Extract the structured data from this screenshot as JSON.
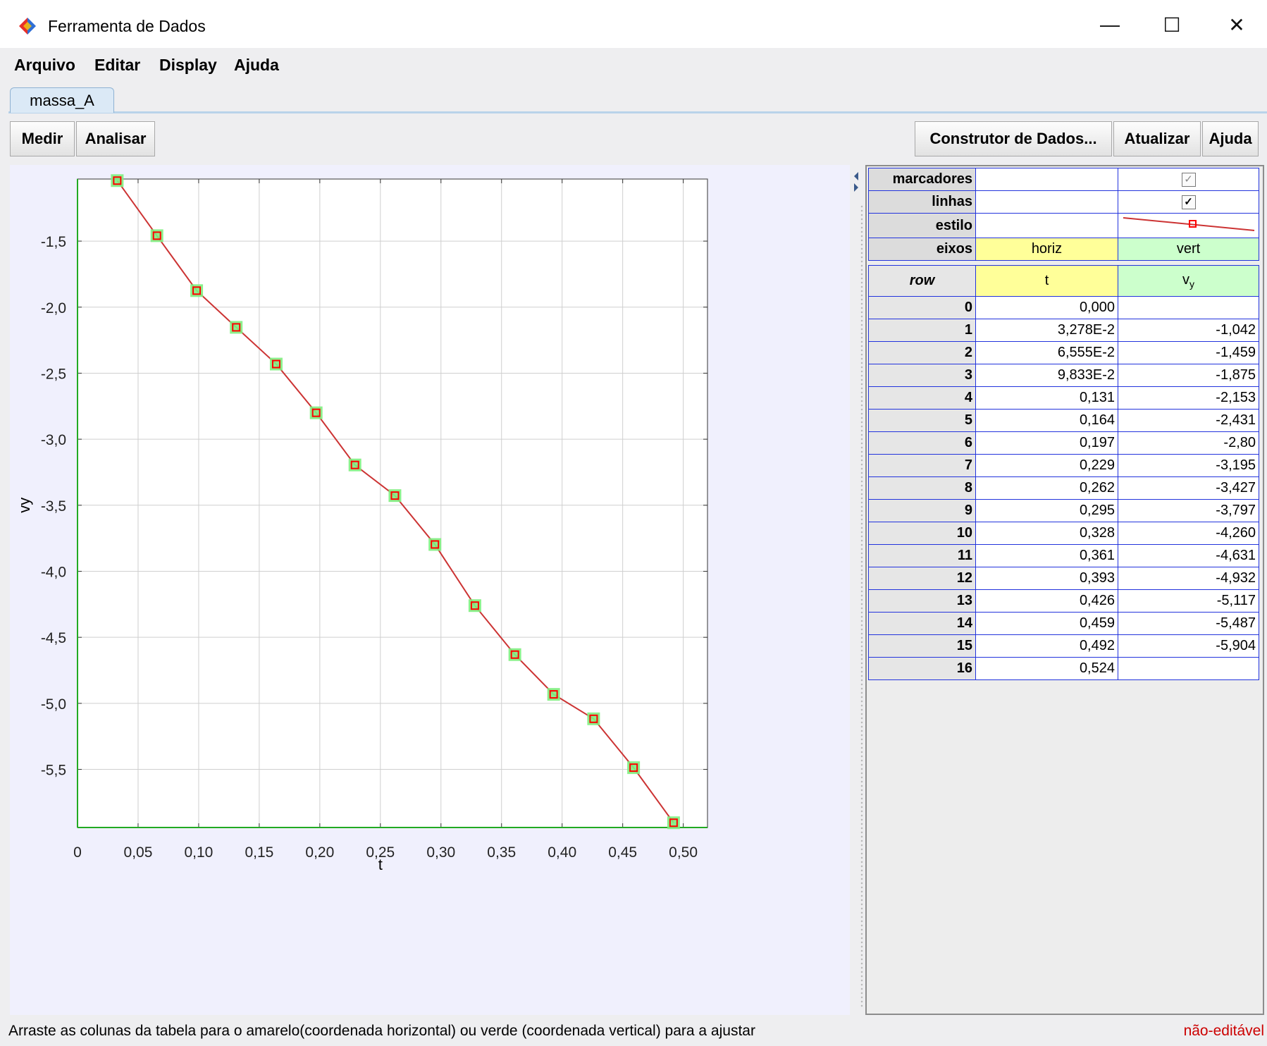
{
  "window": {
    "title": "Ferramenta de Dados",
    "minimize_glyph": "—",
    "maximize_glyph": "☐",
    "close_glyph": "✕"
  },
  "menu": [
    "Arquivo",
    "Editar",
    "Display",
    "Ajuda"
  ],
  "tabs": [
    {
      "label": "massa_A",
      "selected": true
    }
  ],
  "toolbar": {
    "measure_label": "Medir",
    "analyze_label": "Analisar",
    "builder_label": "Construtor de Dados...",
    "refresh_label": "Atualizar",
    "help_label": "Ajuda"
  },
  "properties": {
    "markers_label": "marcadores",
    "markers_checked": true,
    "lines_label": "linhas",
    "lines_checked": true,
    "style_label": "estilo",
    "axes_label": "eixos",
    "horiz_label": "horiz",
    "vert_label": "vert",
    "checkmark": "✓"
  },
  "table": {
    "row_header": "row",
    "t_header": "t",
    "vy_header": "v",
    "vy_subscript": "y",
    "rows": [
      {
        "row": "0",
        "t": "0,000",
        "vy": ""
      },
      {
        "row": "1",
        "t": "3,278E-2",
        "vy": "-1,042"
      },
      {
        "row": "2",
        "t": "6,555E-2",
        "vy": "-1,459"
      },
      {
        "row": "3",
        "t": "9,833E-2",
        "vy": "-1,875"
      },
      {
        "row": "4",
        "t": "0,131",
        "vy": "-2,153"
      },
      {
        "row": "5",
        "t": "0,164",
        "vy": "-2,431"
      },
      {
        "row": "6",
        "t": "0,197",
        "vy": "-2,80"
      },
      {
        "row": "7",
        "t": "0,229",
        "vy": "-3,195"
      },
      {
        "row": "8",
        "t": "0,262",
        "vy": "-3,427"
      },
      {
        "row": "9",
        "t": "0,295",
        "vy": "-3,797"
      },
      {
        "row": "10",
        "t": "0,328",
        "vy": "-4,260"
      },
      {
        "row": "11",
        "t": "0,361",
        "vy": "-4,631"
      },
      {
        "row": "12",
        "t": "0,393",
        "vy": "-4,932"
      },
      {
        "row": "13",
        "t": "0,426",
        "vy": "-5,117"
      },
      {
        "row": "14",
        "t": "0,459",
        "vy": "-5,487"
      },
      {
        "row": "15",
        "t": "0,492",
        "vy": "-5,904"
      },
      {
        "row": "16",
        "t": "0,524",
        "vy": ""
      }
    ]
  },
  "chart_data": {
    "type": "line",
    "xlabel": "t",
    "ylabel": "vy",
    "xlim": [
      0,
      0.52
    ],
    "ylim": [
      -5.94,
      -1.03
    ],
    "xticks": [
      "0",
      "0,05",
      "0,10",
      "0,15",
      "0,20",
      "0,25",
      "0,30",
      "0,35",
      "0,40",
      "0,45",
      "0,50"
    ],
    "xtick_values": [
      0,
      0.05,
      0.1,
      0.15,
      0.2,
      0.25,
      0.3,
      0.35,
      0.4,
      0.45,
      0.5
    ],
    "yticks": [
      "-1,5",
      "-2,0",
      "-2,5",
      "-3,0",
      "-3,5",
      "-4,0",
      "-4,5",
      "-5,0",
      "-5,5"
    ],
    "ytick_values": [
      -1.5,
      -2.0,
      -2.5,
      -3.0,
      -3.5,
      -4.0,
      -4.5,
      -5.0,
      -5.5
    ],
    "grid": true,
    "line_color": "#cc3333",
    "marker_color": "#ff0000",
    "highlight_color": "#80ee80",
    "x": [
      0.03278,
      0.06555,
      0.09833,
      0.131,
      0.164,
      0.197,
      0.229,
      0.262,
      0.295,
      0.328,
      0.361,
      0.393,
      0.426,
      0.459,
      0.492
    ],
    "y": [
      -1.042,
      -1.459,
      -1.875,
      -2.153,
      -2.431,
      -2.8,
      -3.195,
      -3.427,
      -3.797,
      -4.26,
      -4.631,
      -4.932,
      -5.117,
      -5.487,
      -5.904
    ]
  },
  "status": {
    "hint": "Arraste as colunas da tabela para o amarelo(coordenada horizontal) ou verde (coordenada vertical) para a ajustar",
    "editable": "não-editável"
  }
}
